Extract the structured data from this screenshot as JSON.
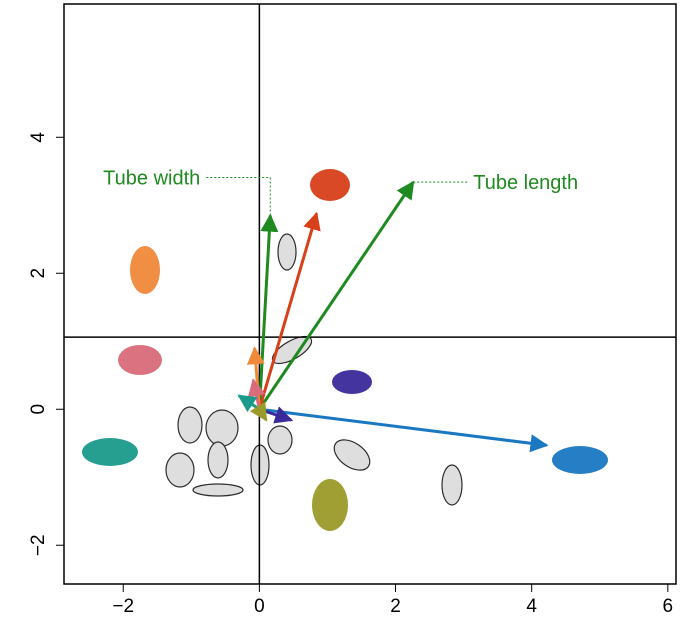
{
  "chart_data": {
    "type": "vector",
    "xlim": [
      -2.87,
      6.12
    ],
    "ylim": [
      -2.57,
      5.96
    ],
    "xticks": [
      {
        "value": -2,
        "label": "−2"
      },
      0,
      2,
      4,
      6
    ],
    "yticks": [
      {
        "value": -2,
        "label": "−2"
      },
      0,
      2,
      4
    ],
    "hlines": [
      1.06
    ],
    "vlines": [
      0
    ],
    "arrows": [
      {
        "x": 2.26,
        "y": 3.34,
        "color": "#1f8a1f",
        "label": "Tube length"
      },
      {
        "x": 0.16,
        "y": 2.85,
        "color": "#1f8a1f",
        "label": "Tube width"
      },
      {
        "x": 0.84,
        "y": 2.88,
        "color": "#d8401a"
      },
      {
        "x": 4.22,
        "y": -0.53,
        "color": "#1a78c2"
      },
      {
        "x": -0.07,
        "y": 0.9,
        "color": "#f08a3a"
      },
      {
        "x": -0.09,
        "y": 0.43,
        "color": "#d96b7a"
      },
      {
        "x": -0.3,
        "y": 0.2,
        "color": "#1a9a8a"
      },
      {
        "x": 0.47,
        "y": -0.16,
        "color": "#3a2a9a"
      },
      {
        "x": 0.1,
        "y": -0.16,
        "color": "#9a9a2a"
      }
    ]
  }
}
